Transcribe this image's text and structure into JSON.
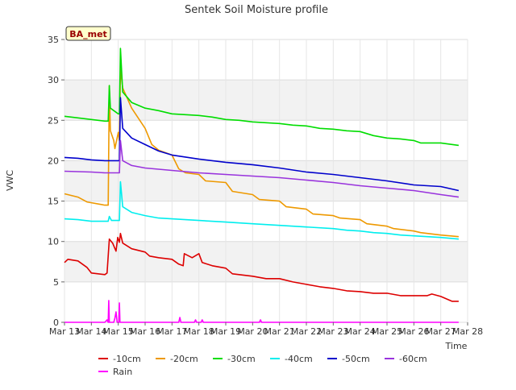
{
  "chart_data": {
    "type": "line",
    "title": "Sentek Soil Moisture profile",
    "site_label": "BA_met",
    "xlabel": "Time",
    "ylabel": "VWC",
    "xlim": [
      "2021-03-13",
      "2021-03-28"
    ],
    "ylim": [
      0,
      35
    ],
    "x_ticks": [
      "Mar 13",
      "Mar 14",
      "Mar 15",
      "Mar 16",
      "Mar 17",
      "Mar 18",
      "Mar 19",
      "Mar 20",
      "Mar 21",
      "Mar 22",
      "Mar 23",
      "Mar 24",
      "Mar 25",
      "Mar 26",
      "Mar 27",
      "Mar 28"
    ],
    "y_ticks": [
      0,
      5,
      10,
      15,
      20,
      25,
      30,
      35
    ],
    "background_bands": true,
    "legend_position": "bottom",
    "series": [
      {
        "name": "-10cm",
        "color": "#dd0000",
        "points": [
          [
            "2021-03-13",
            7.4
          ],
          [
            "2021-03-13 03:00",
            7.8
          ],
          [
            "2021-03-13 12:00",
            7.6
          ],
          [
            "2021-03-13 20:00",
            6.8
          ],
          [
            "2021-03-14 00:00",
            6.1
          ],
          [
            "2021-03-14 12:00",
            5.9
          ],
          [
            "2021-03-14 14:00",
            6.1
          ],
          [
            "2021-03-14 16:00",
            10.3
          ],
          [
            "2021-03-14 19:00",
            9.8
          ],
          [
            "2021-03-14 22:00",
            8.8
          ],
          [
            "2021-03-14 23:30",
            10.5
          ],
          [
            "2021-03-15 01:00",
            9.9
          ],
          [
            "2021-03-15 02:00",
            11.0
          ],
          [
            "2021-03-15 04:00",
            9.8
          ],
          [
            "2021-03-15 12:00",
            9.1
          ],
          [
            "2021-03-16 00:00",
            8.7
          ],
          [
            "2021-03-16 04:00",
            8.2
          ],
          [
            "2021-03-16 12:00",
            8.0
          ],
          [
            "2021-03-17 00:00",
            7.8
          ],
          [
            "2021-03-17 06:00",
            7.2
          ],
          [
            "2021-03-17 10:00",
            7.0
          ],
          [
            "2021-03-17 11:00",
            8.5
          ],
          [
            "2021-03-17 18:00",
            8.0
          ],
          [
            "2021-03-18 00:00",
            8.5
          ],
          [
            "2021-03-18 03:00",
            7.4
          ],
          [
            "2021-03-18 12:00",
            7.0
          ],
          [
            "2021-03-19 00:00",
            6.7
          ],
          [
            "2021-03-19 06:00",
            6.0
          ],
          [
            "2021-03-20 00:00",
            5.7
          ],
          [
            "2021-03-20 12:00",
            5.4
          ],
          [
            "2021-03-21 00:00",
            5.4
          ],
          [
            "2021-03-21 12:00",
            5.0
          ],
          [
            "2021-03-22 00:00",
            4.7
          ],
          [
            "2021-03-22 12:00",
            4.4
          ],
          [
            "2021-03-23 00:00",
            4.2
          ],
          [
            "2021-03-23 12:00",
            3.9
          ],
          [
            "2021-03-24 00:00",
            3.8
          ],
          [
            "2021-03-24 12:00",
            3.6
          ],
          [
            "2021-03-25 00:00",
            3.6
          ],
          [
            "2021-03-25 12:00",
            3.3
          ],
          [
            "2021-03-26 00:00",
            3.3
          ],
          [
            "2021-03-26 12:00",
            3.3
          ],
          [
            "2021-03-26 16:00",
            3.5
          ],
          [
            "2021-03-27 00:00",
            3.2
          ],
          [
            "2021-03-27 10:00",
            2.6
          ],
          [
            "2021-03-27 16:00",
            2.6
          ]
        ]
      },
      {
        "name": "-20cm",
        "color": "#ee9900",
        "points": [
          [
            "2021-03-13",
            15.9
          ],
          [
            "2021-03-13 12:00",
            15.5
          ],
          [
            "2021-03-13 20:00",
            14.9
          ],
          [
            "2021-03-14 12:00",
            14.5
          ],
          [
            "2021-03-14 15:00",
            14.5
          ],
          [
            "2021-03-14 16:00",
            29.3
          ],
          [
            "2021-03-14 17:00",
            23.7
          ],
          [
            "2021-03-14 20:00",
            22.5
          ],
          [
            "2021-03-14 21:00",
            21.5
          ],
          [
            "2021-03-15 00:00",
            23.5
          ],
          [
            "2021-03-15 01:00",
            22.5
          ],
          [
            "2021-03-15 02:00",
            31.3
          ],
          [
            "2021-03-15 04:00",
            29.0
          ],
          [
            "2021-03-15 12:00",
            26.5
          ],
          [
            "2021-03-16 00:00",
            24.0
          ],
          [
            "2021-03-16 06:00",
            22.0
          ],
          [
            "2021-03-16 12:00",
            21.3
          ],
          [
            "2021-03-17 00:00",
            20.7
          ],
          [
            "2021-03-17 06:00",
            19.0
          ],
          [
            "2021-03-17 12:00",
            18.5
          ],
          [
            "2021-03-18 00:00",
            18.3
          ],
          [
            "2021-03-18 06:00",
            17.5
          ],
          [
            "2021-03-19 00:00",
            17.3
          ],
          [
            "2021-03-19 06:00",
            16.2
          ],
          [
            "2021-03-20 00:00",
            15.8
          ],
          [
            "2021-03-20 06:00",
            15.2
          ],
          [
            "2021-03-21 00:00",
            15.0
          ],
          [
            "2021-03-21 06:00",
            14.3
          ],
          [
            "2021-03-22 00:00",
            14.0
          ],
          [
            "2021-03-22 06:00",
            13.4
          ],
          [
            "2021-03-23 00:00",
            13.2
          ],
          [
            "2021-03-23 06:00",
            12.9
          ],
          [
            "2021-03-24 00:00",
            12.7
          ],
          [
            "2021-03-24 06:00",
            12.2
          ],
          [
            "2021-03-25 00:00",
            11.9
          ],
          [
            "2021-03-25 06:00",
            11.6
          ],
          [
            "2021-03-26 00:00",
            11.3
          ],
          [
            "2021-03-26 06:00",
            11.1
          ],
          [
            "2021-03-27 00:00",
            10.8
          ],
          [
            "2021-03-27 16:00",
            10.6
          ]
        ]
      },
      {
        "name": "-30cm",
        "color": "#00dd00",
        "points": [
          [
            "2021-03-13",
            25.5
          ],
          [
            "2021-03-13 12:00",
            25.3
          ],
          [
            "2021-03-14 00:00",
            25.1
          ],
          [
            "2021-03-14 12:00",
            24.9
          ],
          [
            "2021-03-14 15:00",
            24.9
          ],
          [
            "2021-03-14 16:00",
            29.3
          ],
          [
            "2021-03-14 17:00",
            26.5
          ],
          [
            "2021-03-15 00:00",
            25.8
          ],
          [
            "2021-03-15 01:00",
            25.8
          ],
          [
            "2021-03-15 02:00",
            33.9
          ],
          [
            "2021-03-15 04:00",
            28.5
          ],
          [
            "2021-03-15 12:00",
            27.2
          ],
          [
            "2021-03-16 00:00",
            26.5
          ],
          [
            "2021-03-16 12:00",
            26.2
          ],
          [
            "2021-03-17 00:00",
            25.8
          ],
          [
            "2021-03-18 00:00",
            25.6
          ],
          [
            "2021-03-18 12:00",
            25.4
          ],
          [
            "2021-03-19 00:00",
            25.1
          ],
          [
            "2021-03-19 12:00",
            25.0
          ],
          [
            "2021-03-20 00:00",
            24.8
          ],
          [
            "2021-03-21 00:00",
            24.6
          ],
          [
            "2021-03-21 12:00",
            24.4
          ],
          [
            "2021-03-22 00:00",
            24.3
          ],
          [
            "2021-03-22 12:00",
            24.0
          ],
          [
            "2021-03-23 00:00",
            23.9
          ],
          [
            "2021-03-23 12:00",
            23.7
          ],
          [
            "2021-03-24 00:00",
            23.6
          ],
          [
            "2021-03-24 12:00",
            23.1
          ],
          [
            "2021-03-25 00:00",
            22.8
          ],
          [
            "2021-03-25 12:00",
            22.7
          ],
          [
            "2021-03-26 00:00",
            22.5
          ],
          [
            "2021-03-26 06:00",
            22.2
          ],
          [
            "2021-03-27 00:00",
            22.2
          ],
          [
            "2021-03-27 16:00",
            21.9
          ]
        ]
      },
      {
        "name": "-40cm",
        "color": "#00eeee",
        "points": [
          [
            "2021-03-13",
            12.8
          ],
          [
            "2021-03-13 12:00",
            12.7
          ],
          [
            "2021-03-14 00:00",
            12.5
          ],
          [
            "2021-03-14 15:00",
            12.5
          ],
          [
            "2021-03-14 16:00",
            13.1
          ],
          [
            "2021-03-14 18:00",
            12.6
          ],
          [
            "2021-03-15 01:00",
            12.6
          ],
          [
            "2021-03-15 02:00",
            17.4
          ],
          [
            "2021-03-15 04:00",
            14.3
          ],
          [
            "2021-03-15 12:00",
            13.6
          ],
          [
            "2021-03-16 00:00",
            13.2
          ],
          [
            "2021-03-16 12:00",
            12.9
          ],
          [
            "2021-03-17 00:00",
            12.8
          ],
          [
            "2021-03-18 00:00",
            12.6
          ],
          [
            "2021-03-19 00:00",
            12.4
          ],
          [
            "2021-03-20 00:00",
            12.2
          ],
          [
            "2021-03-21 00:00",
            12.0
          ],
          [
            "2021-03-22 00:00",
            11.8
          ],
          [
            "2021-03-23 00:00",
            11.6
          ],
          [
            "2021-03-23 12:00",
            11.4
          ],
          [
            "2021-03-24 00:00",
            11.3
          ],
          [
            "2021-03-24 12:00",
            11.1
          ],
          [
            "2021-03-25 00:00",
            11.0
          ],
          [
            "2021-03-25 12:00",
            10.8
          ],
          [
            "2021-03-26 00:00",
            10.7
          ],
          [
            "2021-03-27 00:00",
            10.5
          ],
          [
            "2021-03-27 16:00",
            10.3
          ]
        ]
      },
      {
        "name": "-50cm",
        "color": "#0000cc",
        "points": [
          [
            "2021-03-13",
            20.4
          ],
          [
            "2021-03-13 12:00",
            20.3
          ],
          [
            "2021-03-14 00:00",
            20.1
          ],
          [
            "2021-03-14 12:00",
            20.0
          ],
          [
            "2021-03-15 01:00",
            20.0
          ],
          [
            "2021-03-15 02:00",
            27.8
          ],
          [
            "2021-03-15 04:00",
            24.0
          ],
          [
            "2021-03-15 12:00",
            22.8
          ],
          [
            "2021-03-16 00:00",
            22.0
          ],
          [
            "2021-03-16 12:00",
            21.2
          ],
          [
            "2021-03-17 00:00",
            20.7
          ],
          [
            "2021-03-18 00:00",
            20.2
          ],
          [
            "2021-03-19 00:00",
            19.8
          ],
          [
            "2021-03-20 00:00",
            19.5
          ],
          [
            "2021-03-21 00:00",
            19.1
          ],
          [
            "2021-03-22 00:00",
            18.6
          ],
          [
            "2021-03-23 00:00",
            18.3
          ],
          [
            "2021-03-24 00:00",
            17.9
          ],
          [
            "2021-03-25 00:00",
            17.5
          ],
          [
            "2021-03-26 00:00",
            17.0
          ],
          [
            "2021-03-27 00:00",
            16.8
          ],
          [
            "2021-03-27 16:00",
            16.3
          ]
        ]
      },
      {
        "name": "-60cm",
        "color": "#9933dd",
        "points": [
          [
            "2021-03-13",
            18.7
          ],
          [
            "2021-03-14 00:00",
            18.6
          ],
          [
            "2021-03-14 12:00",
            18.5
          ],
          [
            "2021-03-15 01:00",
            18.5
          ],
          [
            "2021-03-15 02:00",
            22.5
          ],
          [
            "2021-03-15 04:00",
            20.0
          ],
          [
            "2021-03-15 12:00",
            19.4
          ],
          [
            "2021-03-16 00:00",
            19.1
          ],
          [
            "2021-03-17 00:00",
            18.8
          ],
          [
            "2021-03-18 00:00",
            18.5
          ],
          [
            "2021-03-19 00:00",
            18.3
          ],
          [
            "2021-03-20 00:00",
            18.1
          ],
          [
            "2021-03-21 00:00",
            17.9
          ],
          [
            "2021-03-22 00:00",
            17.6
          ],
          [
            "2021-03-23 00:00",
            17.3
          ],
          [
            "2021-03-24 00:00",
            16.9
          ],
          [
            "2021-03-25 00:00",
            16.6
          ],
          [
            "2021-03-26 00:00",
            16.3
          ],
          [
            "2021-03-27 00:00",
            15.8
          ],
          [
            "2021-03-27 16:00",
            15.5
          ]
        ]
      },
      {
        "name": "Rain",
        "color": "#ff00ff",
        "points": [
          [
            "2021-03-13",
            0
          ],
          [
            "2021-03-14 12:00",
            0
          ],
          [
            "2021-03-14 14:00",
            0.3
          ],
          [
            "2021-03-14 15:00",
            0
          ],
          [
            "2021-03-14 15:30",
            2.7
          ],
          [
            "2021-03-14 16:00",
            0
          ],
          [
            "2021-03-14 20:00",
            0
          ],
          [
            "2021-03-14 21:00",
            0.5
          ],
          [
            "2021-03-14 22:00",
            1.3
          ],
          [
            "2021-03-14 23:00",
            0
          ],
          [
            "2021-03-15 00:30",
            0
          ],
          [
            "2021-03-15 01:00",
            2.4
          ],
          [
            "2021-03-15 01:30",
            0
          ],
          [
            "2021-03-17 06:00",
            0
          ],
          [
            "2021-03-17 07:00",
            0.6
          ],
          [
            "2021-03-17 08:00",
            0
          ],
          [
            "2021-03-17 20:00",
            0
          ],
          [
            "2021-03-17 21:00",
            0.3
          ],
          [
            "2021-03-17 22:00",
            0
          ],
          [
            "2021-03-18 02:00",
            0
          ],
          [
            "2021-03-18 03:00",
            0.3
          ],
          [
            "2021-03-18 04:00",
            0
          ],
          [
            "2021-03-20 06:00",
            0
          ],
          [
            "2021-03-20 07:00",
            0.3
          ],
          [
            "2021-03-20 08:00",
            0
          ],
          [
            "2021-03-27 16:00",
            0
          ]
        ]
      }
    ]
  }
}
